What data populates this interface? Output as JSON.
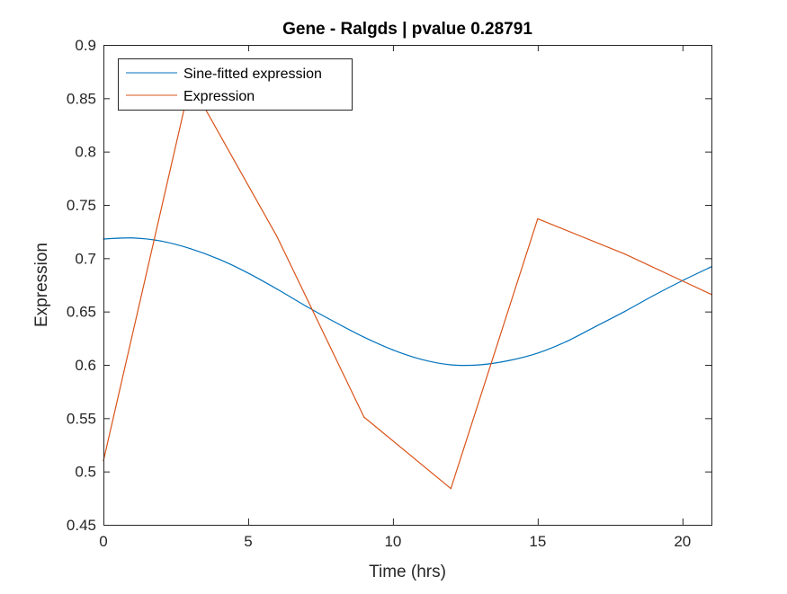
{
  "chart_data": {
    "type": "line",
    "title": "Gene - Ralgds | pvalue 0.28791",
    "xlabel": "Time (hrs)",
    "ylabel": "Expression",
    "xlim": [
      0,
      21
    ],
    "ylim": [
      0.45,
      0.9
    ],
    "xticks": [
      0,
      5,
      10,
      15,
      20
    ],
    "yticks": [
      0.45,
      0.5,
      0.55,
      0.6,
      0.65,
      0.7,
      0.75,
      0.8,
      0.85,
      0.9
    ],
    "ytick_labels": [
      "0.45",
      "0.5",
      "0.55",
      "0.6",
      "0.65",
      "0.7",
      "0.75",
      "0.8",
      "0.85",
      "0.9"
    ],
    "grid": false,
    "legend_position": "top-left",
    "series": [
      {
        "name": "Sine-fitted expression",
        "color": "#0072BD",
        "style": "smooth",
        "x": [
          0,
          1,
          2,
          3,
          4,
          5,
          6,
          7,
          8,
          9,
          10,
          11,
          12,
          13,
          14,
          15,
          16,
          17,
          18,
          19,
          20,
          21
        ],
        "y": [
          0.718,
          0.719,
          0.716,
          0.709,
          0.699,
          0.686,
          0.671,
          0.655,
          0.64,
          0.626,
          0.614,
          0.605,
          0.6,
          0.6,
          0.604,
          0.611,
          0.622,
          0.636,
          0.65,
          0.665,
          0.679,
          0.692
        ]
      },
      {
        "name": "Expression",
        "color": "#D95319",
        "style": "linear",
        "x": [
          0,
          3,
          6,
          9,
          12,
          15,
          18,
          21
        ],
        "y": [
          0.51,
          0.865,
          0.72,
          0.551,
          0.484,
          0.737,
          0.704,
          0.666
        ]
      }
    ]
  }
}
